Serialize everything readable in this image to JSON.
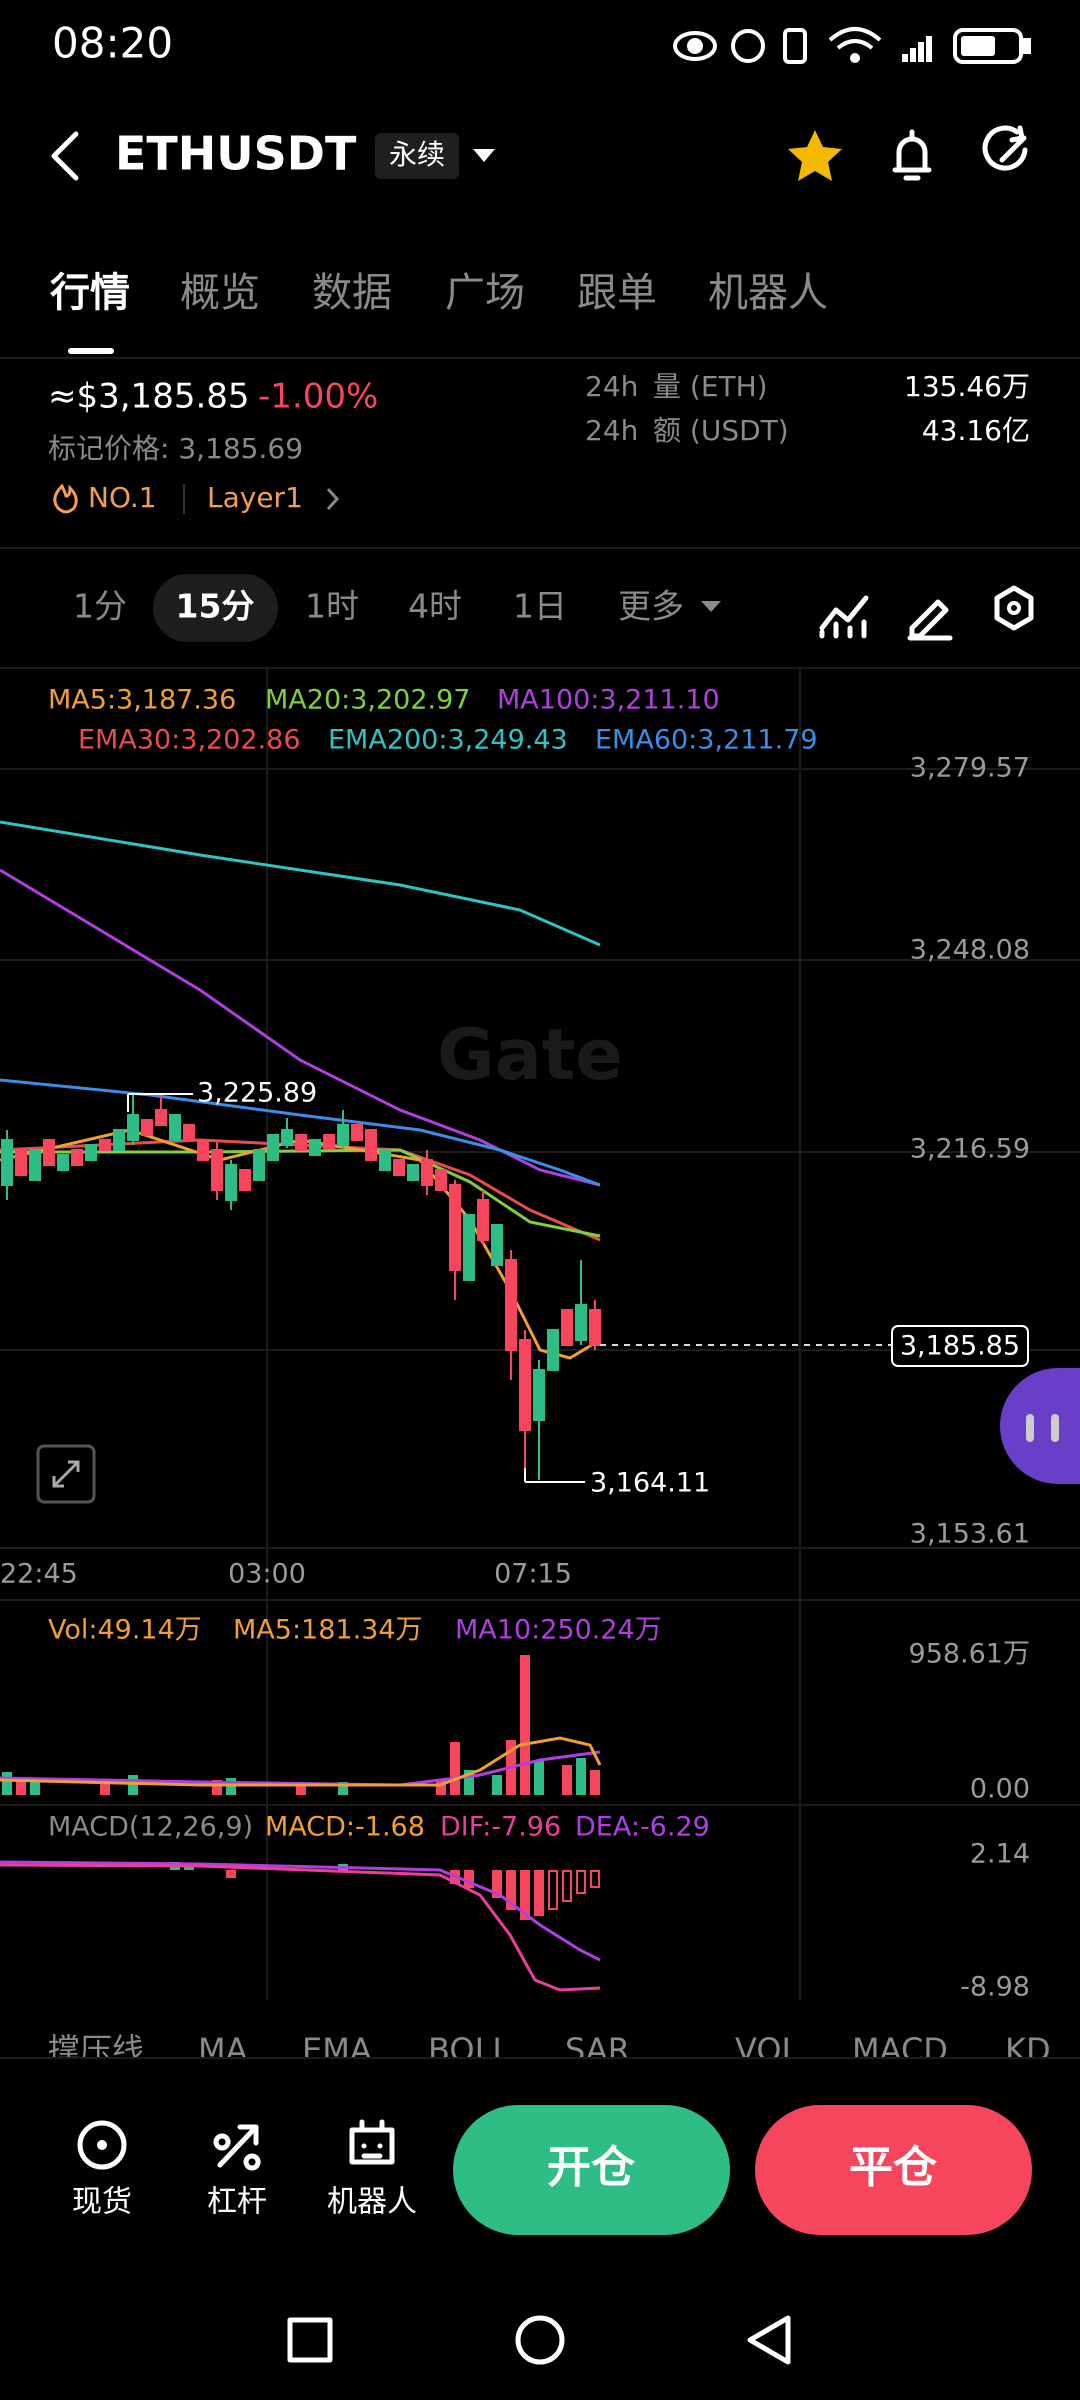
{
  "status": {
    "time": "08:20"
  },
  "header": {
    "symbol": "ETHUSDT",
    "tag": "永续"
  },
  "tabs": [
    "行情",
    "概览",
    "数据",
    "广场",
    "跟单",
    "机器人"
  ],
  "ticker": {
    "price": "≈$3,185.85",
    "change": "-1.00%",
    "mark_price": "标记价格: 3,185.69",
    "rank": "NO.1",
    "sector": "Layer1",
    "stats": [
      {
        "period": "24h",
        "label": "量 (ETH)",
        "value": "135.46万"
      },
      {
        "period": "24h",
        "label": "额 (USDT)",
        "value": "43.16亿"
      }
    ]
  },
  "intervals": [
    "1分",
    "15分",
    "1时",
    "4时",
    "1日",
    "更多"
  ],
  "indicators": [
    "MA5:3,187.36",
    "MA20:3,202.97",
    "MA100:3,211.10",
    "EMA30:3,202.86",
    "EMA200:3,249.43",
    "EMA60:3,211.79"
  ],
  "price_axis": [
    "3,279.57",
    "3,248.08",
    "3,216.59",
    "3,153.61"
  ],
  "last_price": "3,185.85",
  "high_label": "3,225.89",
  "low_label": "3,164.11",
  "watermark": "Gate",
  "time_axis": [
    "22:45",
    "03:00",
    "07:15"
  ],
  "volume": {
    "labels": [
      "Vol:49.14万",
      "MA5:181.34万",
      "MA10:250.24万"
    ],
    "axis": [
      "958.61万",
      "0.00"
    ]
  },
  "macd": {
    "labels": [
      "MACD(12,26,9)",
      "MACD:-1.68",
      "DIF:-7.96",
      "DEA:-6.29"
    ],
    "axis": [
      "2.14",
      "-8.98"
    ]
  },
  "indicator_tabs": [
    "撑压线",
    "MA",
    "EMA",
    "BOLL",
    "SAR",
    "VOL",
    "MACD",
    "KD"
  ],
  "bottom_nav": [
    "现货",
    "杠杆",
    "机器人"
  ],
  "actions": {
    "open": "开仓",
    "close": "平仓"
  }
}
